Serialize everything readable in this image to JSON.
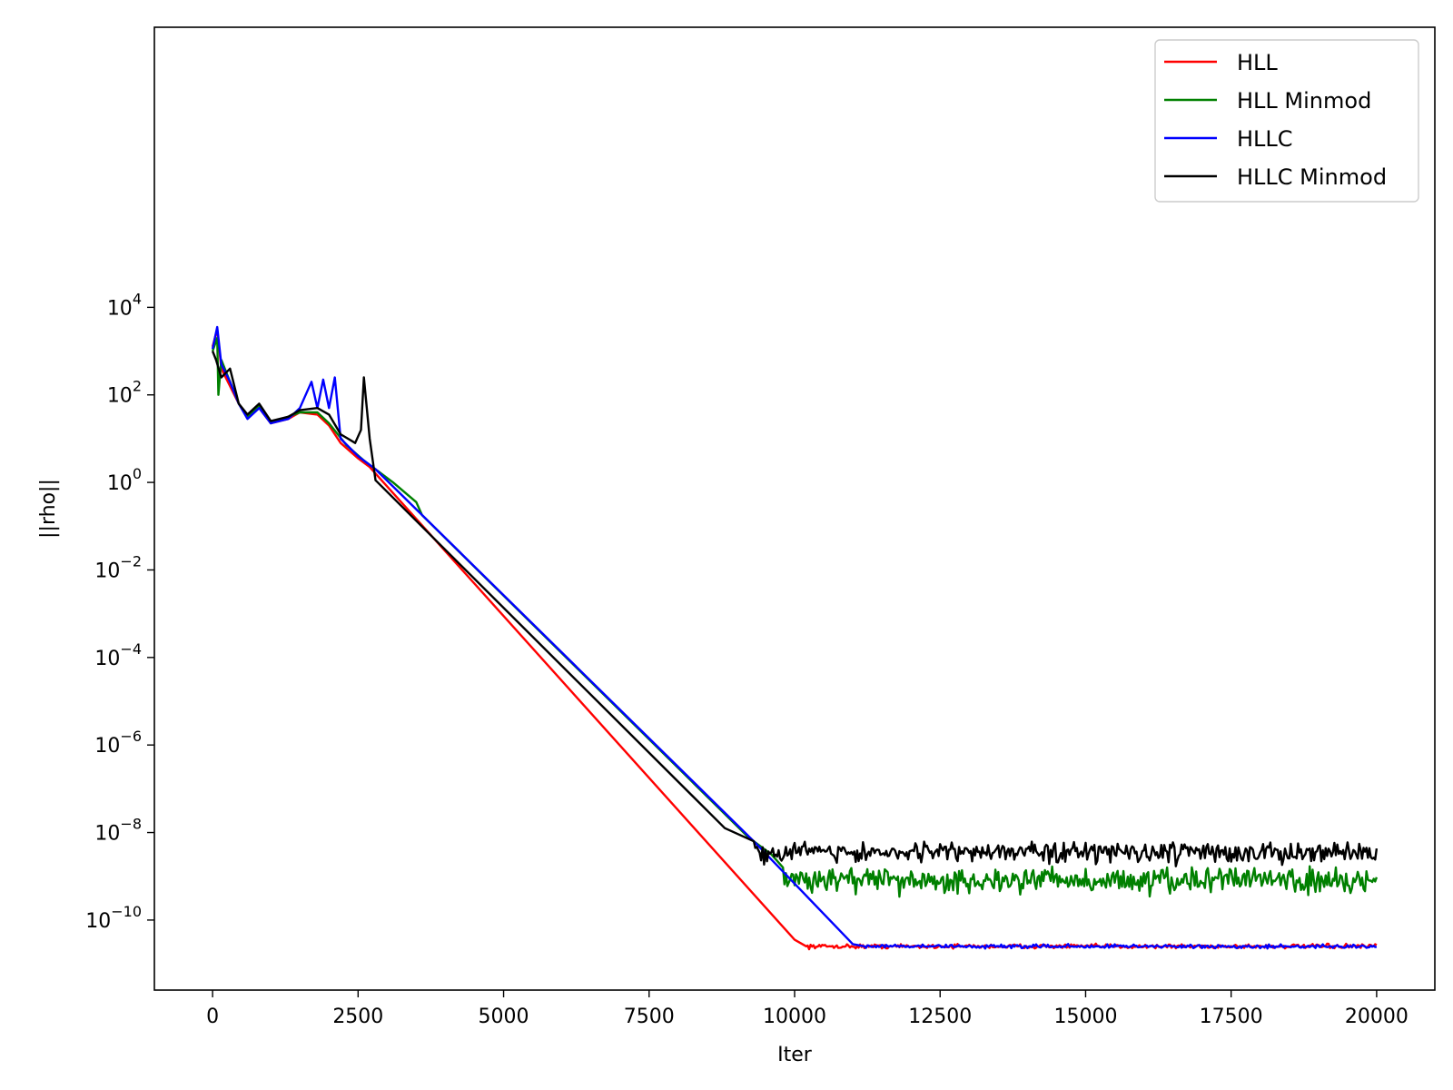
{
  "chart_data": {
    "type": "line",
    "xlabel": "Iter",
    "ylabel": "||rho||",
    "xlim": [
      -1000,
      21000
    ],
    "ylim_exponent": [
      -11.6,
      10.4
    ],
    "ylog": true,
    "grid": false,
    "legend_position": "top-right",
    "x_ticks": [
      {
        "value": 0,
        "label": "0"
      },
      {
        "value": 2500,
        "label": "2500"
      },
      {
        "value": 5000,
        "label": "5000"
      },
      {
        "value": 7500,
        "label": "7500"
      },
      {
        "value": 10000,
        "label": "10000"
      },
      {
        "value": 12500,
        "label": "12500"
      },
      {
        "value": 15000,
        "label": "15000"
      },
      {
        "value": 17500,
        "label": "17500"
      },
      {
        "value": 20000,
        "label": "20000"
      }
    ],
    "y_ticks": [
      {
        "exponent": 4,
        "base": "10",
        "sup": "4"
      },
      {
        "exponent": 2,
        "base": "10",
        "sup": "2"
      },
      {
        "exponent": 0,
        "base": "10",
        "sup": "0"
      },
      {
        "exponent": -2,
        "base": "10",
        "sup": "−2"
      },
      {
        "exponent": -4,
        "base": "10",
        "sup": "−4"
      },
      {
        "exponent": -6,
        "base": "10",
        "sup": "−6"
      },
      {
        "exponent": -8,
        "base": "10",
        "sup": "−8"
      },
      {
        "exponent": -10,
        "base": "10",
        "sup": "−10"
      }
    ],
    "series": [
      {
        "name": "HLL",
        "color": "#ff0000",
        "key_points": [
          [
            0,
            3.1
          ],
          [
            80,
            3.5
          ],
          [
            150,
            2.6
          ],
          [
            300,
            2.2
          ],
          [
            450,
            1.8
          ],
          [
            600,
            1.5
          ],
          [
            800,
            1.7
          ],
          [
            1000,
            1.35
          ],
          [
            1300,
            1.45
          ],
          [
            1500,
            1.6
          ],
          [
            1800,
            1.55
          ],
          [
            2000,
            1.3
          ],
          [
            2200,
            0.9
          ],
          [
            2500,
            0.55
          ],
          [
            2700,
            0.35
          ],
          [
            10000,
            -10.45
          ],
          [
            10200,
            -10.6
          ],
          [
            20000,
            -10.6
          ]
        ],
        "noise": {
          "start": 10200,
          "end": 20000,
          "center": -10.6,
          "amplitude": 0.07,
          "step": 25
        }
      },
      {
        "name": "HLL Minmod",
        "color": "#008000",
        "key_points": [
          [
            0,
            3.0
          ],
          [
            80,
            3.3
          ],
          [
            100,
            2.0
          ],
          [
            150,
            2.8
          ],
          [
            300,
            2.3
          ],
          [
            450,
            1.8
          ],
          [
            600,
            1.5
          ],
          [
            800,
            1.75
          ],
          [
            1000,
            1.35
          ],
          [
            1300,
            1.5
          ],
          [
            1500,
            1.6
          ],
          [
            1800,
            1.6
          ],
          [
            2000,
            1.35
          ],
          [
            2300,
            0.85
          ],
          [
            2600,
            0.5
          ],
          [
            3100,
            0.0
          ],
          [
            3500,
            -0.45
          ],
          [
            3600,
            -0.75
          ],
          [
            9200,
            -8.1
          ],
          [
            9600,
            -8.5
          ],
          [
            9800,
            -8.8
          ],
          [
            20000,
            -9.2
          ]
        ],
        "noise": {
          "start": 9800,
          "end": 20000,
          "center": -9.1,
          "amplitude": 0.45,
          "step": 25
        }
      },
      {
        "name": "HLLC",
        "color": "#0000ff",
        "key_points": [
          [
            0,
            3.05
          ],
          [
            80,
            3.55
          ],
          [
            150,
            2.7
          ],
          [
            300,
            2.3
          ],
          [
            450,
            1.8
          ],
          [
            600,
            1.45
          ],
          [
            800,
            1.7
          ],
          [
            1000,
            1.35
          ],
          [
            1300,
            1.45
          ],
          [
            1500,
            1.7
          ],
          [
            1700,
            2.3
          ],
          [
            1800,
            1.7
          ],
          [
            1900,
            2.35
          ],
          [
            2000,
            1.7
          ],
          [
            2100,
            2.4
          ],
          [
            2200,
            1.0
          ],
          [
            2500,
            0.6
          ],
          [
            2800,
            0.3
          ],
          [
            9300,
            -8.2
          ],
          [
            11000,
            -10.55
          ],
          [
            11200,
            -10.6
          ],
          [
            20000,
            -10.6
          ]
        ],
        "noise": {
          "start": 11200,
          "end": 20000,
          "center": -10.6,
          "amplitude": 0.06,
          "step": 25
        }
      },
      {
        "name": "HLLC Minmod",
        "color": "#000000",
        "key_points": [
          [
            0,
            3.0
          ],
          [
            60,
            2.8
          ],
          [
            150,
            2.4
          ],
          [
            300,
            2.6
          ],
          [
            450,
            1.8
          ],
          [
            600,
            1.55
          ],
          [
            800,
            1.8
          ],
          [
            1000,
            1.4
          ],
          [
            1300,
            1.5
          ],
          [
            1500,
            1.65
          ],
          [
            1800,
            1.7
          ],
          [
            2000,
            1.55
          ],
          [
            2200,
            1.1
          ],
          [
            2450,
            0.9
          ],
          [
            2550,
            1.2
          ],
          [
            2600,
            2.4
          ],
          [
            2700,
            1.0
          ],
          [
            2800,
            0.05
          ],
          [
            8800,
            -7.9
          ],
          [
            9300,
            -8.2
          ],
          [
            20000,
            -8.45
          ]
        ],
        "noise": {
          "start": 9300,
          "end": 20000,
          "center": -8.45,
          "amplitude": 0.35,
          "step": 25
        }
      }
    ]
  }
}
